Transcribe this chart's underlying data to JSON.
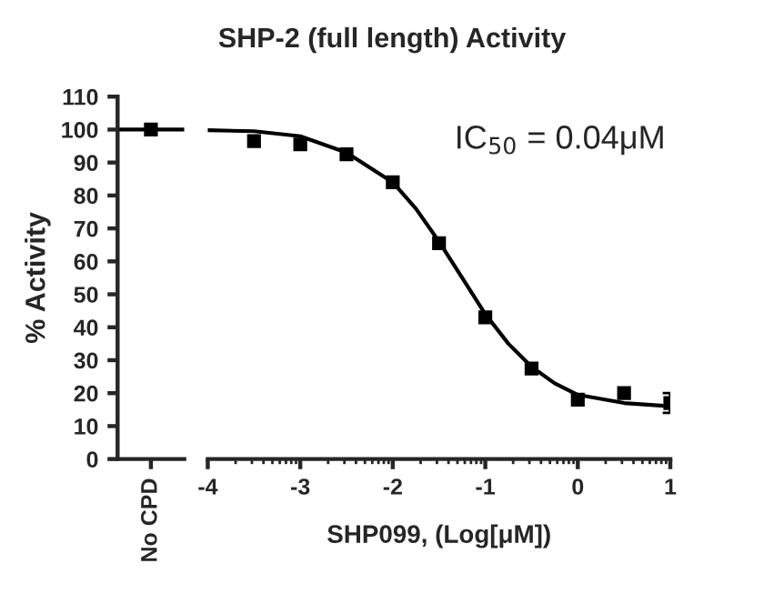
{
  "chart_data": [
    {
      "type": "scatter",
      "ylabel": "% Activity",
      "categories": [
        "No CPD"
      ],
      "ylim": [
        0,
        110
      ],
      "yticks": [
        0,
        10,
        20,
        30,
        40,
        50,
        60,
        70,
        80,
        90,
        100,
        110
      ],
      "marker": "square",
      "grid": false,
      "legend": false,
      "series": [
        {
          "color": "#000000",
          "values": [
            100
          ]
        }
      ],
      "ref_lines": [
        {
          "axis": "y",
          "value": 100,
          "color": "#000000"
        }
      ]
    },
    {
      "type": "scatter",
      "title": "SHP-2 (full length) Activity",
      "xlabel": "SHP099, (Log[μM])",
      "xlim": [
        -4,
        1
      ],
      "xticks": [
        -4,
        -3,
        -2,
        -1,
        0,
        1
      ],
      "ylim": [
        0,
        110
      ],
      "tick_labels": "x",
      "marker": "square",
      "grid": false,
      "legend": false,
      "annotations": [
        "IC$_{50}$ = 0.04μM"
      ],
      "series": [
        {
          "type": "scatter",
          "color": "#000000",
          "x": [
            -3.5,
            -3,
            -2.5,
            -2,
            -1.5,
            -1,
            -0.5,
            0,
            0.5,
            1
          ],
          "values": [
            96.5,
            95.5,
            92.5,
            84,
            65.5,
            43,
            27.5,
            18,
            20,
            17
          ],
          "errors": [
            null,
            null,
            null,
            null,
            null,
            null,
            null,
            null,
            null,
            3
          ]
        },
        {
          "type": "line",
          "color": "#000000",
          "marker": "none",
          "x": [
            -4,
            -3.5,
            -3,
            -2.5,
            -2,
            -1.75,
            -1.5,
            -1.25,
            -1,
            -0.75,
            -0.5,
            -0.25,
            0,
            0.5,
            1
          ],
          "values": [
            99.8,
            99.5,
            98,
            93,
            84,
            76,
            66,
            55,
            44,
            35,
            28,
            23,
            19.5,
            17,
            16
          ]
        }
      ]
    }
  ]
}
